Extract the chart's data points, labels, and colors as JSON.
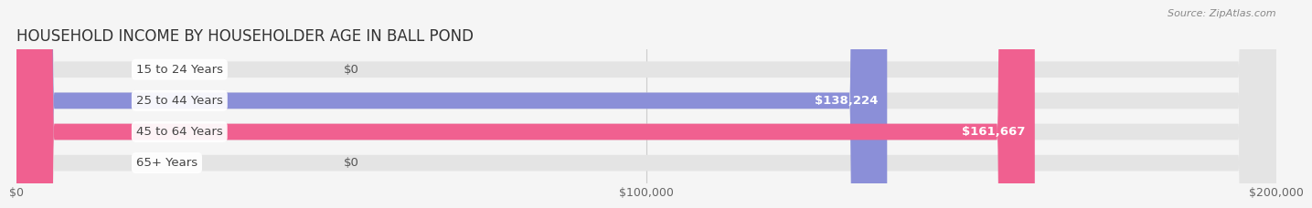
{
  "title": "HOUSEHOLD INCOME BY HOUSEHOLDER AGE IN BALL POND",
  "source": "Source: ZipAtlas.com",
  "categories": [
    "15 to 24 Years",
    "25 to 44 Years",
    "45 to 64 Years",
    "65+ Years"
  ],
  "values": [
    0,
    138224,
    161667,
    0
  ],
  "bar_colors": [
    "#5ecfca",
    "#8b8fd8",
    "#f06090",
    "#f5c897"
  ],
  "value_labels": [
    "$0",
    "$138,224",
    "$161,667",
    "$0"
  ],
  "xlim": [
    0,
    200000
  ],
  "xticks": [
    0,
    100000,
    200000
  ],
  "xticklabels": [
    "$0",
    "$100,000",
    "$200,000"
  ],
  "background_color": "#f5f5f5",
  "bar_bg_color": "#e4e4e4",
  "bar_height": 0.52,
  "title_fontsize": 12,
  "label_fontsize": 9.5,
  "tick_fontsize": 9
}
